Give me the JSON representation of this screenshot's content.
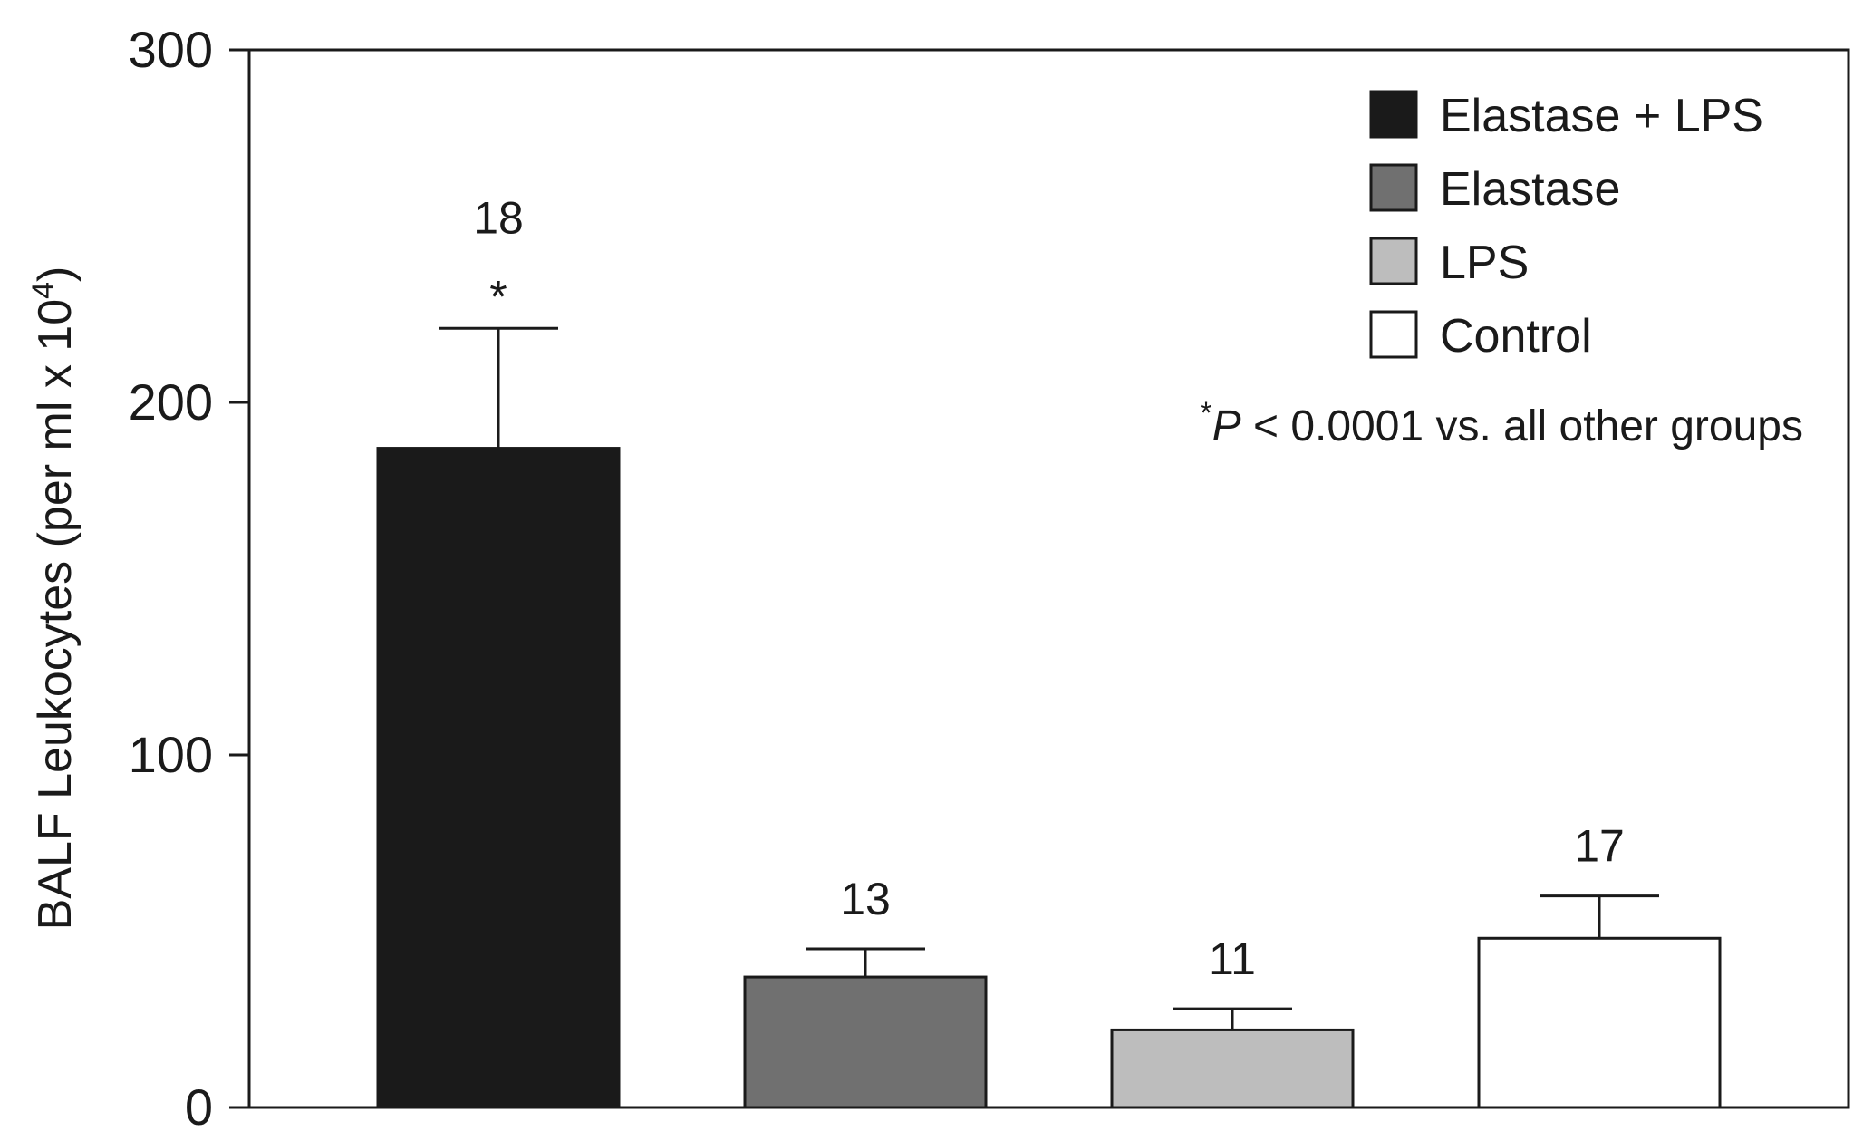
{
  "chart_data": {
    "type": "bar",
    "categories": [
      "Elastase + LPS",
      "Elastase",
      "LPS",
      "Control"
    ],
    "series": [
      {
        "values": [
          187,
          37,
          22,
          48
        ],
        "errors": [
          34,
          8,
          6,
          12
        ],
        "colors": [
          "#1a1a1a",
          "#707070",
          "#bdbdbd",
          "#ffffff"
        ]
      }
    ],
    "n_labels": [
      "18",
      "13",
      "11",
      "17"
    ],
    "significance": [
      "*",
      "",
      "",
      ""
    ],
    "ylabel_main": "BALF Leukocytes (per ml x 10",
    "ylabel_sup": "4",
    "ylabel_end": ")",
    "ylim": [
      0,
      300
    ],
    "yticks": [
      0,
      100,
      200,
      300
    ],
    "legend": {
      "placement": "top-right",
      "entries": [
        {
          "label": "Elastase + LPS",
          "color": "#1a1a1a"
        },
        {
          "label": "Elastase",
          "color": "#707070"
        },
        {
          "label": "LPS",
          "color": "#bdbdbd"
        },
        {
          "label": "Control",
          "color": "#ffffff"
        }
      ]
    },
    "note": {
      "star": "*",
      "p": "P",
      "rest": " < 0.0001 vs. all other groups"
    },
    "grid": false
  }
}
